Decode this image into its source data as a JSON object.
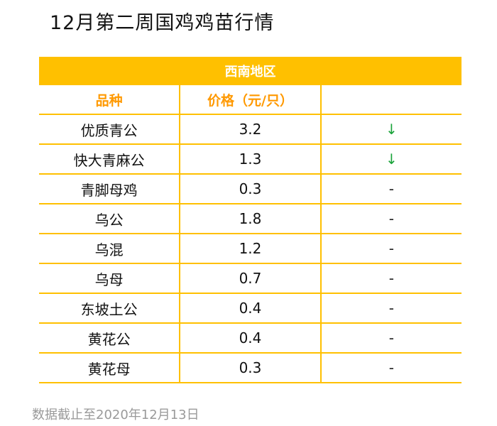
{
  "title": "12月第二周国鸡鸡苗行情",
  "table": {
    "region": "西南地区",
    "headers": [
      "品种",
      "价格（元/只）",
      ""
    ],
    "rows": [
      {
        "breed": "优质青公",
        "price": "3.2",
        "trend": "↓",
        "trend_type": "down"
      },
      {
        "breed": "快大青麻公",
        "price": "1.3",
        "trend": "↓",
        "trend_type": "down"
      },
      {
        "breed": "青脚母鸡",
        "price": "0.3",
        "trend": "-",
        "trend_type": "flat"
      },
      {
        "breed": "乌公",
        "price": "1.8",
        "trend": "-",
        "trend_type": "flat"
      },
      {
        "breed": "乌混",
        "price": "1.2",
        "trend": "-",
        "trend_type": "flat"
      },
      {
        "breed": "乌母",
        "price": "0.7",
        "trend": "-",
        "trend_type": "flat"
      },
      {
        "breed": "东坡土公",
        "price": "0.4",
        "trend": "-",
        "trend_type": "flat"
      },
      {
        "breed": "黄花公",
        "price": "0.4",
        "trend": "-",
        "trend_type": "flat"
      },
      {
        "breed": "黄花母",
        "price": "0.3",
        "trend": "-",
        "trend_type": "flat"
      }
    ]
  },
  "footnote": "数据截止至2020年12月13日",
  "colors": {
    "accent": "#ffc000",
    "header_text": "#ff9900",
    "trend_down": "#1aa33a"
  }
}
